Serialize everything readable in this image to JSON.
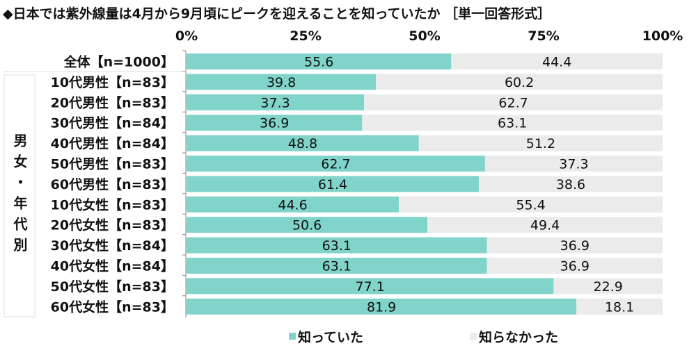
{
  "chart_data": {
    "type": "bar",
    "stacked": true,
    "orientation": "horizontal",
    "title": "◆日本では紫外線量は4月から9月頃にピークを迎えることを知っていたか ［単一回答形式］",
    "xlim": [
      0,
      100
    ],
    "x_ticks": [
      "0%",
      "25%",
      "50%",
      "75%",
      "100%"
    ],
    "group_label": "男女・年代別",
    "categories": [
      "全体【n=1000】",
      "10代男性【n=83】",
      "20代男性【n=83】",
      "30代男性【n=84】",
      "40代男性【n=84】",
      "50代男性【n=83】",
      "60代男性【n=83】",
      "10代女性【n=83】",
      "20代女性【n=83】",
      "30代女性【n=84】",
      "40代女性【n=84】",
      "50代女性【n=83】",
      "60代女性【n=83】"
    ],
    "series": [
      {
        "name": "知っていた",
        "color": "#80d4ca",
        "values": [
          55.6,
          39.8,
          37.3,
          36.9,
          48.8,
          62.7,
          61.4,
          44.6,
          50.6,
          63.1,
          63.1,
          77.1,
          81.9
        ]
      },
      {
        "name": "知らなかった",
        "color": "#ebebeb",
        "values": [
          44.4,
          60.2,
          62.7,
          63.1,
          51.2,
          37.3,
          38.6,
          55.4,
          49.4,
          36.9,
          36.9,
          22.9,
          18.1
        ]
      }
    ],
    "legend": "bottom"
  }
}
